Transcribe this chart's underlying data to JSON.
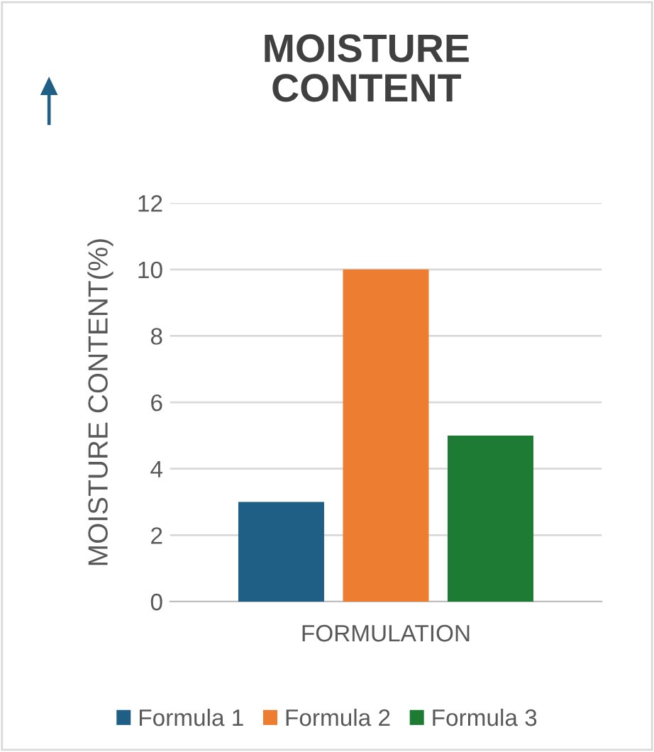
{
  "chart_data": {
    "type": "bar",
    "title": "MOISTURE\nCONTENT",
    "xlabel": "FORMULATION",
    "ylabel": "MOISTURE CONTENT(%)",
    "categories": [
      null
    ],
    "series": [
      {
        "name": "Formula 1",
        "color": "#1f5f85",
        "values": [
          3
        ]
      },
      {
        "name": "Formula 2",
        "color": "#ed7d31",
        "values": [
          10
        ]
      },
      {
        "name": "Formula 3",
        "color": "#1e7b34",
        "values": [
          5
        ]
      }
    ],
    "ylim": [
      0,
      12
    ],
    "yticks": [
      0,
      2,
      4,
      6,
      8,
      10,
      12
    ],
    "grid": "y",
    "legend": "bottom"
  }
}
